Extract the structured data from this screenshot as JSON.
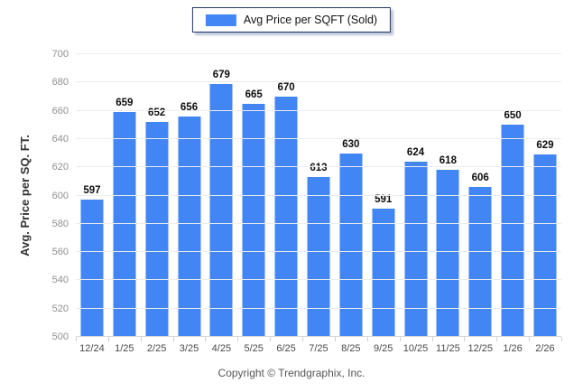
{
  "legend": {
    "label": "Avg Price per SQFT (Sold)",
    "swatch_color": "#4285f4"
  },
  "footer": {
    "copyright": "Copyright © Trendgraphix, Inc."
  },
  "chart_data": {
    "type": "bar",
    "title": "",
    "series_name": "Avg Price per SQFT (Sold)",
    "categories": [
      "12/24",
      "1/25",
      "2/25",
      "3/25",
      "4/25",
      "5/25",
      "6/25",
      "7/25",
      "8/25",
      "9/25",
      "10/25",
      "11/25",
      "12/25",
      "1/26",
      "2/26"
    ],
    "values": [
      597,
      659,
      652,
      656,
      679,
      665,
      670,
      613,
      630,
      591,
      624,
      618,
      606,
      650,
      629
    ],
    "xlabel": "",
    "ylabel": "Avg. Price per SQ. FT.",
    "ylim": [
      500,
      700
    ],
    "yticks": [
      500,
      520,
      540,
      560,
      580,
      600,
      620,
      640,
      660,
      680,
      700
    ],
    "grid": true,
    "legend_position": "top-center",
    "bar_color": "#4285f4",
    "data_labels": true
  }
}
